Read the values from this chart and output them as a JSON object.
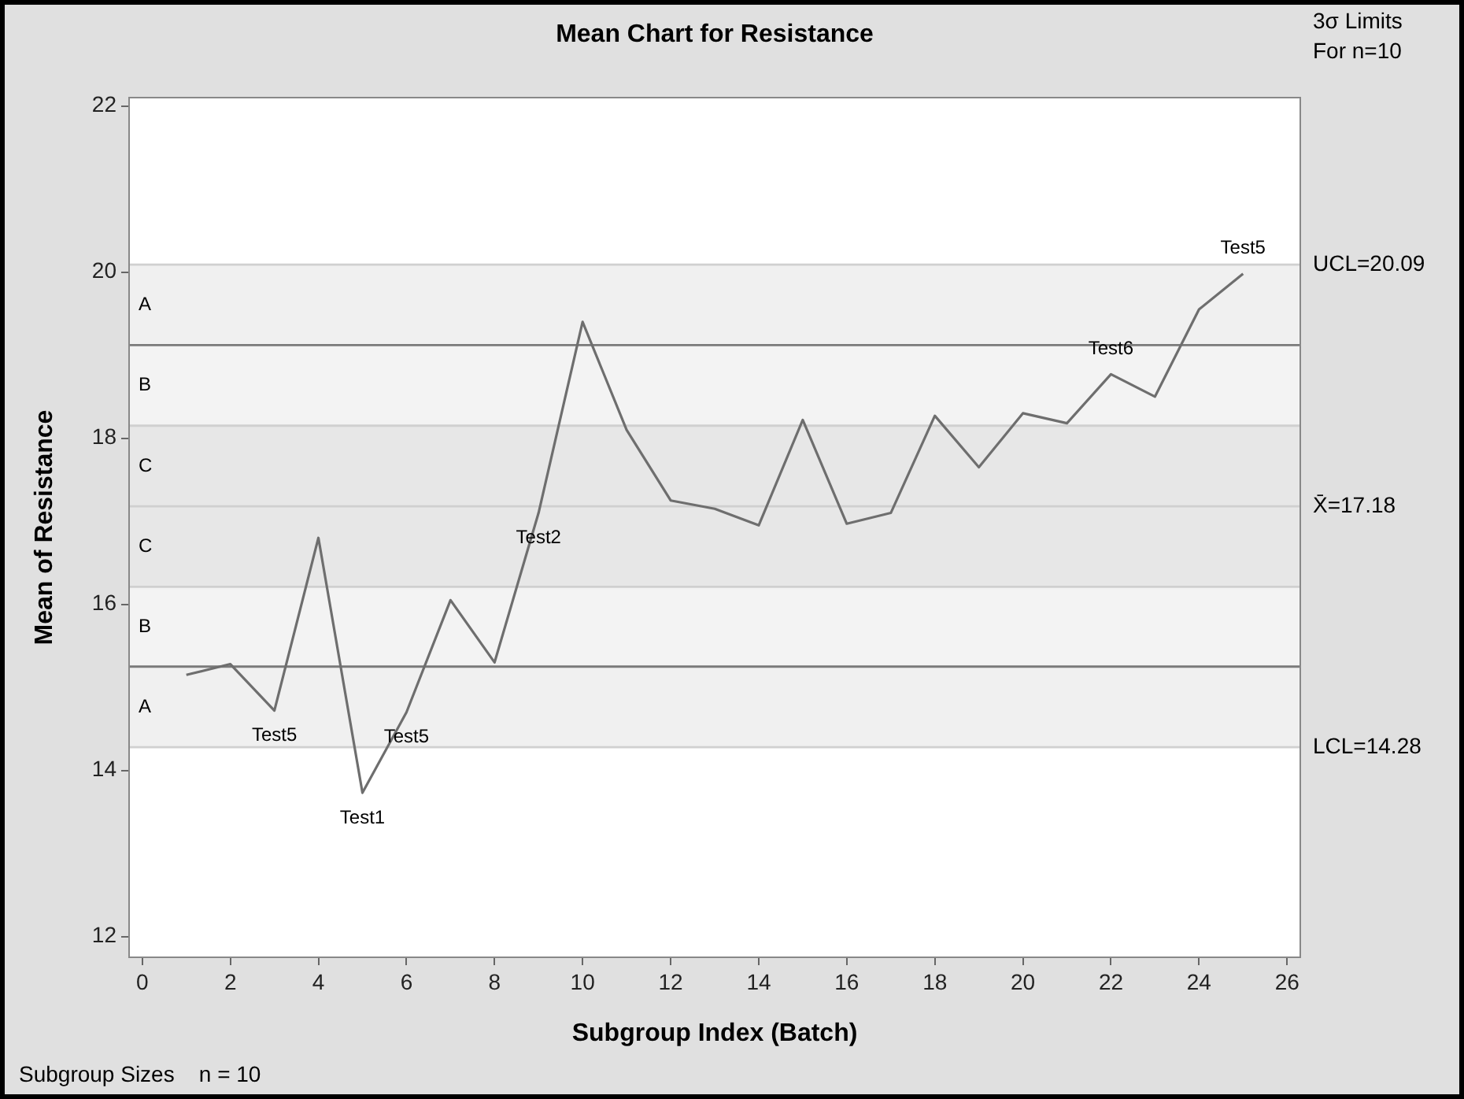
{
  "chart_data": {
    "type": "line",
    "title": "Mean Chart for Resistance",
    "xlabel": "Subgroup Index (Batch)",
    "ylabel": "Mean of Resistance",
    "x": [
      1,
      2,
      3,
      4,
      5,
      6,
      7,
      8,
      9,
      10,
      11,
      12,
      13,
      14,
      15,
      16,
      17,
      18,
      19,
      20,
      21,
      22,
      23,
      24,
      25
    ],
    "series": [
      {
        "color": "#6e6e6e",
        "values": [
          15.15,
          15.28,
          14.72,
          16.8,
          13.73,
          14.7,
          16.05,
          15.3,
          17.1,
          19.4,
          18.1,
          17.25,
          17.15,
          16.95,
          18.22,
          16.97,
          17.1,
          18.27,
          17.65,
          18.3,
          18.18,
          18.77,
          18.5,
          19.55,
          19.98
        ]
      }
    ],
    "xlim": [
      -0.3,
      26.3
    ],
    "xticks": [
      0,
      2,
      4,
      6,
      8,
      10,
      12,
      14,
      16,
      18,
      20,
      22,
      24,
      26
    ],
    "ylim": [
      11.75,
      22.1
    ],
    "yticks": [
      12,
      14,
      16,
      18,
      20,
      22
    ],
    "marker": "none",
    "legend": false,
    "bands": [
      {
        "axis": "y",
        "from": 19.12,
        "to": 20.09,
        "label": "A",
        "color": "#f0f0f0"
      },
      {
        "axis": "y",
        "from": 18.15,
        "to": 19.12,
        "label": "B",
        "color": "#f3f3f3"
      },
      {
        "axis": "y",
        "from": 17.18,
        "to": 18.15,
        "label": "C",
        "color": "#e7e7e7"
      },
      {
        "axis": "y",
        "from": 16.21,
        "to": 17.18,
        "label": "C",
        "color": "#e7e7e7"
      },
      {
        "axis": "y",
        "from": 15.25,
        "to": 16.21,
        "label": "B",
        "color": "#f3f3f3"
      },
      {
        "axis": "y",
        "from": 14.28,
        "to": 15.25,
        "label": "A",
        "color": "#f0f0f0"
      }
    ],
    "ref_lines": [
      {
        "axis": "y",
        "value": 20.09,
        "label": "UCL=20.09",
        "color": "#d0d0d0"
      },
      {
        "axis": "y",
        "value": 17.18,
        "label": "X̄=17.18",
        "color": "#d0d0d0"
      },
      {
        "axis": "y",
        "value": 14.28,
        "label": "LCL=14.28",
        "color": "#d0d0d0"
      },
      {
        "axis": "y",
        "value": 19.12,
        "color": "#7a7a7a"
      },
      {
        "axis": "y",
        "value": 18.15,
        "color": "#d0d0d0"
      },
      {
        "axis": "y",
        "value": 16.21,
        "color": "#d0d0d0"
      },
      {
        "axis": "y",
        "value": 15.25,
        "color": "#7a7a7a"
      }
    ],
    "annotations": [
      {
        "text": "Test5",
        "x": 3,
        "y": 14.72
      },
      {
        "text": "Test1",
        "x": 5,
        "y": 13.73
      },
      {
        "text": "Test5",
        "x": 6,
        "y": 14.7
      },
      {
        "text": "Test2",
        "x": 9,
        "y": 17.1
      },
      {
        "text": "Test6",
        "x": 22,
        "y": 18.77
      },
      {
        "text": "Test5",
        "x": 25,
        "y": 19.98
      },
      "3σ Limits",
      "For n=10",
      "Subgroup Sizes    n = 10"
    ]
  }
}
